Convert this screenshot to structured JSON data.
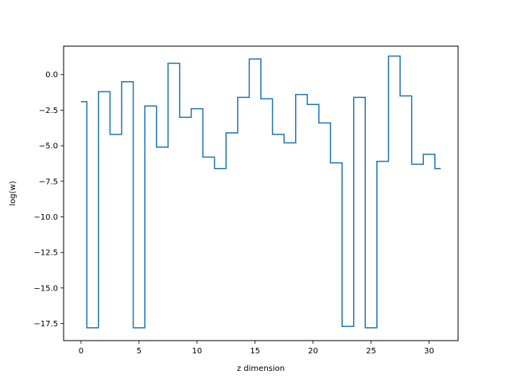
{
  "chart_data": {
    "type": "line",
    "drawstyle": "steps-mid",
    "title": "",
    "xlabel": "z dimension",
    "ylabel": "log(w)",
    "xlim": [
      -1.5,
      32.5
    ],
    "ylim": [
      -18.7,
      2.0
    ],
    "xticks": [
      0,
      5,
      10,
      15,
      20,
      25,
      30
    ],
    "xtick_labels": [
      "0",
      "5",
      "10",
      "15",
      "20",
      "25",
      "30"
    ],
    "yticks": [
      0.0,
      -2.5,
      -5.0,
      -7.5,
      -10.0,
      -12.5,
      -15.0,
      -17.5
    ],
    "ytick_labels": [
      "0.0",
      "−2.5",
      "−5.0",
      "−7.5",
      "−10.0",
      "−12.5",
      "−15.0",
      "−17.5"
    ],
    "grid": false,
    "series": [
      {
        "color": "#1f77b4",
        "x": [
          0,
          1,
          2,
          3,
          4,
          5,
          6,
          7,
          8,
          9,
          10,
          11,
          12,
          13,
          14,
          15,
          16,
          17,
          18,
          19,
          20,
          21,
          22,
          23,
          24,
          25,
          26,
          27,
          28,
          29,
          30,
          31
        ],
        "y": [
          -1.9,
          -17.8,
          -1.2,
          -4.2,
          -0.5,
          -17.8,
          -2.2,
          -5.1,
          0.8,
          -3.0,
          -2.4,
          -5.8,
          -6.6,
          -4.1,
          -1.6,
          1.1,
          -1.7,
          -4.2,
          -4.8,
          -1.4,
          -2.1,
          -3.4,
          -6.2,
          -17.7,
          -1.6,
          -17.8,
          -6.1,
          1.3,
          -1.5,
          -6.3,
          -5.6,
          -6.6
        ]
      }
    ]
  }
}
